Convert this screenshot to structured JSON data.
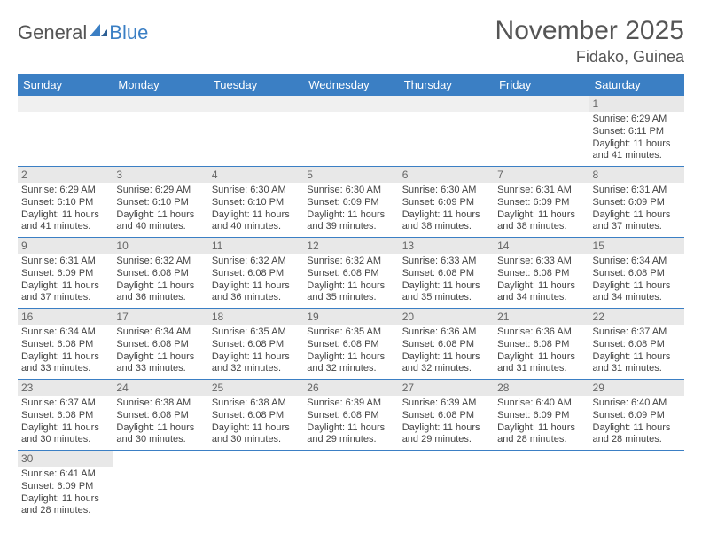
{
  "logo": {
    "general": "General",
    "blue": "Blue"
  },
  "title": "November 2025",
  "location": "Fidako, Guinea",
  "colors": {
    "header_bg": "#3b7fc4",
    "header_text": "#ffffff",
    "daynum_bg": "#e8e8e8",
    "border": "#3b7fc4",
    "text": "#444444",
    "title_text": "#555555"
  },
  "day_headers": [
    "Sunday",
    "Monday",
    "Tuesday",
    "Wednesday",
    "Thursday",
    "Friday",
    "Saturday"
  ],
  "weeks": [
    [
      null,
      null,
      null,
      null,
      null,
      null,
      {
        "n": 1,
        "sunrise": "6:29 AM",
        "sunset": "6:11 PM",
        "daylight": "11 hours and 41 minutes."
      }
    ],
    [
      {
        "n": 2,
        "sunrise": "6:29 AM",
        "sunset": "6:10 PM",
        "daylight": "11 hours and 41 minutes."
      },
      {
        "n": 3,
        "sunrise": "6:29 AM",
        "sunset": "6:10 PM",
        "daylight": "11 hours and 40 minutes."
      },
      {
        "n": 4,
        "sunrise": "6:30 AM",
        "sunset": "6:10 PM",
        "daylight": "11 hours and 40 minutes."
      },
      {
        "n": 5,
        "sunrise": "6:30 AM",
        "sunset": "6:09 PM",
        "daylight": "11 hours and 39 minutes."
      },
      {
        "n": 6,
        "sunrise": "6:30 AM",
        "sunset": "6:09 PM",
        "daylight": "11 hours and 38 minutes."
      },
      {
        "n": 7,
        "sunrise": "6:31 AM",
        "sunset": "6:09 PM",
        "daylight": "11 hours and 38 minutes."
      },
      {
        "n": 8,
        "sunrise": "6:31 AM",
        "sunset": "6:09 PM",
        "daylight": "11 hours and 37 minutes."
      }
    ],
    [
      {
        "n": 9,
        "sunrise": "6:31 AM",
        "sunset": "6:09 PM",
        "daylight": "11 hours and 37 minutes."
      },
      {
        "n": 10,
        "sunrise": "6:32 AM",
        "sunset": "6:08 PM",
        "daylight": "11 hours and 36 minutes."
      },
      {
        "n": 11,
        "sunrise": "6:32 AM",
        "sunset": "6:08 PM",
        "daylight": "11 hours and 36 minutes."
      },
      {
        "n": 12,
        "sunrise": "6:32 AM",
        "sunset": "6:08 PM",
        "daylight": "11 hours and 35 minutes."
      },
      {
        "n": 13,
        "sunrise": "6:33 AM",
        "sunset": "6:08 PM",
        "daylight": "11 hours and 35 minutes."
      },
      {
        "n": 14,
        "sunrise": "6:33 AM",
        "sunset": "6:08 PM",
        "daylight": "11 hours and 34 minutes."
      },
      {
        "n": 15,
        "sunrise": "6:34 AM",
        "sunset": "6:08 PM",
        "daylight": "11 hours and 34 minutes."
      }
    ],
    [
      {
        "n": 16,
        "sunrise": "6:34 AM",
        "sunset": "6:08 PM",
        "daylight": "11 hours and 33 minutes."
      },
      {
        "n": 17,
        "sunrise": "6:34 AM",
        "sunset": "6:08 PM",
        "daylight": "11 hours and 33 minutes."
      },
      {
        "n": 18,
        "sunrise": "6:35 AM",
        "sunset": "6:08 PM",
        "daylight": "11 hours and 32 minutes."
      },
      {
        "n": 19,
        "sunrise": "6:35 AM",
        "sunset": "6:08 PM",
        "daylight": "11 hours and 32 minutes."
      },
      {
        "n": 20,
        "sunrise": "6:36 AM",
        "sunset": "6:08 PM",
        "daylight": "11 hours and 32 minutes."
      },
      {
        "n": 21,
        "sunrise": "6:36 AM",
        "sunset": "6:08 PM",
        "daylight": "11 hours and 31 minutes."
      },
      {
        "n": 22,
        "sunrise": "6:37 AM",
        "sunset": "6:08 PM",
        "daylight": "11 hours and 31 minutes."
      }
    ],
    [
      {
        "n": 23,
        "sunrise": "6:37 AM",
        "sunset": "6:08 PM",
        "daylight": "11 hours and 30 minutes."
      },
      {
        "n": 24,
        "sunrise": "6:38 AM",
        "sunset": "6:08 PM",
        "daylight": "11 hours and 30 minutes."
      },
      {
        "n": 25,
        "sunrise": "6:38 AM",
        "sunset": "6:08 PM",
        "daylight": "11 hours and 30 minutes."
      },
      {
        "n": 26,
        "sunrise": "6:39 AM",
        "sunset": "6:08 PM",
        "daylight": "11 hours and 29 minutes."
      },
      {
        "n": 27,
        "sunrise": "6:39 AM",
        "sunset": "6:08 PM",
        "daylight": "11 hours and 29 minutes."
      },
      {
        "n": 28,
        "sunrise": "6:40 AM",
        "sunset": "6:09 PM",
        "daylight": "11 hours and 28 minutes."
      },
      {
        "n": 29,
        "sunrise": "6:40 AM",
        "sunset": "6:09 PM",
        "daylight": "11 hours and 28 minutes."
      }
    ],
    [
      {
        "n": 30,
        "sunrise": "6:41 AM",
        "sunset": "6:09 PM",
        "daylight": "11 hours and 28 minutes."
      },
      null,
      null,
      null,
      null,
      null,
      null
    ]
  ],
  "labels": {
    "sunrise": "Sunrise: ",
    "sunset": "Sunset: ",
    "daylight": "Daylight: "
  }
}
